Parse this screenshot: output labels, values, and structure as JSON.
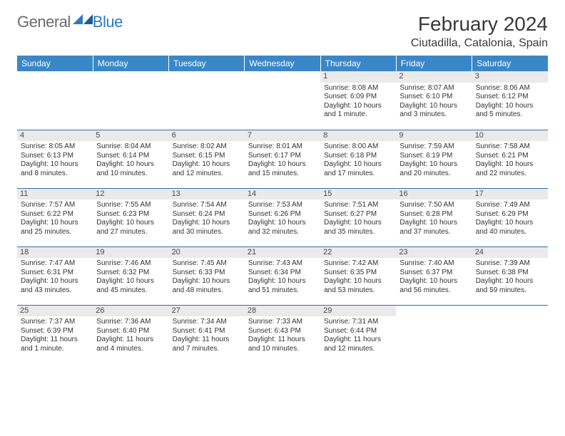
{
  "logo": {
    "text_general": "General",
    "text_blue": "Blue"
  },
  "header": {
    "month_title": "February 2024",
    "location": "Ciutadilla, Catalonia, Spain"
  },
  "colors": {
    "header_bg": "#3a87c8",
    "header_text": "#ffffff",
    "week_divider": "#3a6ea5",
    "daynum_bg": "#eaeaea",
    "body_text": "#333333",
    "logo_blue": "#2b79c2",
    "logo_gray": "#6a6a6a"
  },
  "fonts": {
    "title_size_pt": 21,
    "location_size_pt": 12,
    "dow_size_pt": 9,
    "cell_size_pt": 7.5
  },
  "layout": {
    "columns": 7,
    "rows": 5,
    "first_weekday": "Sunday"
  },
  "days_of_week": [
    "Sunday",
    "Monday",
    "Tuesday",
    "Wednesday",
    "Thursday",
    "Friday",
    "Saturday"
  ],
  "weeks": [
    [
      null,
      null,
      null,
      null,
      {
        "n": "1",
        "sr": "Sunrise: 8:08 AM",
        "ss": "Sunset: 6:09 PM",
        "dl1": "Daylight: 10 hours",
        "dl2": "and 1 minute."
      },
      {
        "n": "2",
        "sr": "Sunrise: 8:07 AM",
        "ss": "Sunset: 6:10 PM",
        "dl1": "Daylight: 10 hours",
        "dl2": "and 3 minutes."
      },
      {
        "n": "3",
        "sr": "Sunrise: 8:06 AM",
        "ss": "Sunset: 6:12 PM",
        "dl1": "Daylight: 10 hours",
        "dl2": "and 5 minutes."
      }
    ],
    [
      {
        "n": "4",
        "sr": "Sunrise: 8:05 AM",
        "ss": "Sunset: 6:13 PM",
        "dl1": "Daylight: 10 hours",
        "dl2": "and 8 minutes."
      },
      {
        "n": "5",
        "sr": "Sunrise: 8:04 AM",
        "ss": "Sunset: 6:14 PM",
        "dl1": "Daylight: 10 hours",
        "dl2": "and 10 minutes."
      },
      {
        "n": "6",
        "sr": "Sunrise: 8:02 AM",
        "ss": "Sunset: 6:15 PM",
        "dl1": "Daylight: 10 hours",
        "dl2": "and 12 minutes."
      },
      {
        "n": "7",
        "sr": "Sunrise: 8:01 AM",
        "ss": "Sunset: 6:17 PM",
        "dl1": "Daylight: 10 hours",
        "dl2": "and 15 minutes."
      },
      {
        "n": "8",
        "sr": "Sunrise: 8:00 AM",
        "ss": "Sunset: 6:18 PM",
        "dl1": "Daylight: 10 hours",
        "dl2": "and 17 minutes."
      },
      {
        "n": "9",
        "sr": "Sunrise: 7:59 AM",
        "ss": "Sunset: 6:19 PM",
        "dl1": "Daylight: 10 hours",
        "dl2": "and 20 minutes."
      },
      {
        "n": "10",
        "sr": "Sunrise: 7:58 AM",
        "ss": "Sunset: 6:21 PM",
        "dl1": "Daylight: 10 hours",
        "dl2": "and 22 minutes."
      }
    ],
    [
      {
        "n": "11",
        "sr": "Sunrise: 7:57 AM",
        "ss": "Sunset: 6:22 PM",
        "dl1": "Daylight: 10 hours",
        "dl2": "and 25 minutes."
      },
      {
        "n": "12",
        "sr": "Sunrise: 7:55 AM",
        "ss": "Sunset: 6:23 PM",
        "dl1": "Daylight: 10 hours",
        "dl2": "and 27 minutes."
      },
      {
        "n": "13",
        "sr": "Sunrise: 7:54 AM",
        "ss": "Sunset: 6:24 PM",
        "dl1": "Daylight: 10 hours",
        "dl2": "and 30 minutes."
      },
      {
        "n": "14",
        "sr": "Sunrise: 7:53 AM",
        "ss": "Sunset: 6:26 PM",
        "dl1": "Daylight: 10 hours",
        "dl2": "and 32 minutes."
      },
      {
        "n": "15",
        "sr": "Sunrise: 7:51 AM",
        "ss": "Sunset: 6:27 PM",
        "dl1": "Daylight: 10 hours",
        "dl2": "and 35 minutes."
      },
      {
        "n": "16",
        "sr": "Sunrise: 7:50 AM",
        "ss": "Sunset: 6:28 PM",
        "dl1": "Daylight: 10 hours",
        "dl2": "and 37 minutes."
      },
      {
        "n": "17",
        "sr": "Sunrise: 7:49 AM",
        "ss": "Sunset: 6:29 PM",
        "dl1": "Daylight: 10 hours",
        "dl2": "and 40 minutes."
      }
    ],
    [
      {
        "n": "18",
        "sr": "Sunrise: 7:47 AM",
        "ss": "Sunset: 6:31 PM",
        "dl1": "Daylight: 10 hours",
        "dl2": "and 43 minutes."
      },
      {
        "n": "19",
        "sr": "Sunrise: 7:46 AM",
        "ss": "Sunset: 6:32 PM",
        "dl1": "Daylight: 10 hours",
        "dl2": "and 45 minutes."
      },
      {
        "n": "20",
        "sr": "Sunrise: 7:45 AM",
        "ss": "Sunset: 6:33 PM",
        "dl1": "Daylight: 10 hours",
        "dl2": "and 48 minutes."
      },
      {
        "n": "21",
        "sr": "Sunrise: 7:43 AM",
        "ss": "Sunset: 6:34 PM",
        "dl1": "Daylight: 10 hours",
        "dl2": "and 51 minutes."
      },
      {
        "n": "22",
        "sr": "Sunrise: 7:42 AM",
        "ss": "Sunset: 6:35 PM",
        "dl1": "Daylight: 10 hours",
        "dl2": "and 53 minutes."
      },
      {
        "n": "23",
        "sr": "Sunrise: 7:40 AM",
        "ss": "Sunset: 6:37 PM",
        "dl1": "Daylight: 10 hours",
        "dl2": "and 56 minutes."
      },
      {
        "n": "24",
        "sr": "Sunrise: 7:39 AM",
        "ss": "Sunset: 6:38 PM",
        "dl1": "Daylight: 10 hours",
        "dl2": "and 59 minutes."
      }
    ],
    [
      {
        "n": "25",
        "sr": "Sunrise: 7:37 AM",
        "ss": "Sunset: 6:39 PM",
        "dl1": "Daylight: 11 hours",
        "dl2": "and 1 minute."
      },
      {
        "n": "26",
        "sr": "Sunrise: 7:36 AM",
        "ss": "Sunset: 6:40 PM",
        "dl1": "Daylight: 11 hours",
        "dl2": "and 4 minutes."
      },
      {
        "n": "27",
        "sr": "Sunrise: 7:34 AM",
        "ss": "Sunset: 6:41 PM",
        "dl1": "Daylight: 11 hours",
        "dl2": "and 7 minutes."
      },
      {
        "n": "28",
        "sr": "Sunrise: 7:33 AM",
        "ss": "Sunset: 6:43 PM",
        "dl1": "Daylight: 11 hours",
        "dl2": "and 10 minutes."
      },
      {
        "n": "29",
        "sr": "Sunrise: 7:31 AM",
        "ss": "Sunset: 6:44 PM",
        "dl1": "Daylight: 11 hours",
        "dl2": "and 12 minutes."
      },
      null,
      null
    ]
  ]
}
